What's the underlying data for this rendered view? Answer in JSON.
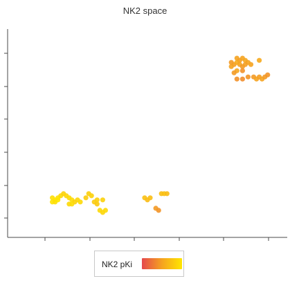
{
  "chart_data": {
    "type": "scatter",
    "title": "NK2 space",
    "legend": {
      "label": "NK2 pKi",
      "colors": [
        "#e5484d",
        "#f5a320",
        "#ffe600"
      ],
      "placement": "bottom-center"
    },
    "grid": false,
    "xlim": [
      0,
      100
    ],
    "ylim": [
      0,
      100
    ],
    "points": [
      {
        "x": 80,
        "y": 84,
        "c": 0.45
      },
      {
        "x": 82,
        "y": 86,
        "c": 0.5
      },
      {
        "x": 83,
        "y": 85,
        "c": 0.48
      },
      {
        "x": 84,
        "y": 86,
        "c": 0.5
      },
      {
        "x": 85,
        "y": 85,
        "c": 0.52
      },
      {
        "x": 86,
        "y": 84,
        "c": 0.5
      },
      {
        "x": 81,
        "y": 83,
        "c": 0.47
      },
      {
        "x": 82,
        "y": 84,
        "c": 0.55
      },
      {
        "x": 83,
        "y": 83,
        "c": 0.5
      },
      {
        "x": 84,
        "y": 82,
        "c": 0.45
      },
      {
        "x": 85,
        "y": 83,
        "c": 0.48
      },
      {
        "x": 80,
        "y": 82,
        "c": 0.5
      },
      {
        "x": 82,
        "y": 80,
        "c": 0.52
      },
      {
        "x": 81,
        "y": 79,
        "c": 0.45
      },
      {
        "x": 84,
        "y": 80,
        "c": 0.4
      },
      {
        "x": 82,
        "y": 76,
        "c": 0.4
      },
      {
        "x": 84,
        "y": 76,
        "c": 0.38
      },
      {
        "x": 86,
        "y": 77,
        "c": 0.42
      },
      {
        "x": 88,
        "y": 77,
        "c": 0.45
      },
      {
        "x": 89,
        "y": 76,
        "c": 0.5
      },
      {
        "x": 90,
        "y": 77,
        "c": 0.48
      },
      {
        "x": 91,
        "y": 76,
        "c": 0.5
      },
      {
        "x": 92,
        "y": 77,
        "c": 0.45
      },
      {
        "x": 93,
        "y": 78,
        "c": 0.42
      },
      {
        "x": 90,
        "y": 85,
        "c": 0.55
      },
      {
        "x": 87,
        "y": 83,
        "c": 0.5
      },
      {
        "x": 16,
        "y": 19,
        "c": 0.95
      },
      {
        "x": 17,
        "y": 18,
        "c": 0.98
      },
      {
        "x": 16,
        "y": 17,
        "c": 0.97
      },
      {
        "x": 17,
        "y": 17,
        "c": 0.95
      },
      {
        "x": 18,
        "y": 19,
        "c": 0.96
      },
      {
        "x": 19,
        "y": 20,
        "c": 0.9
      },
      {
        "x": 20,
        "y": 21,
        "c": 0.85
      },
      {
        "x": 21,
        "y": 20,
        "c": 0.88
      },
      {
        "x": 22,
        "y": 19,
        "c": 0.9
      },
      {
        "x": 23,
        "y": 18,
        "c": 0.92
      },
      {
        "x": 24,
        "y": 17,
        "c": 0.85
      },
      {
        "x": 22,
        "y": 16,
        "c": 0.9
      },
      {
        "x": 23,
        "y": 16,
        "c": 0.92
      },
      {
        "x": 25,
        "y": 18,
        "c": 0.88
      },
      {
        "x": 26,
        "y": 17,
        "c": 0.9
      },
      {
        "x": 28,
        "y": 19,
        "c": 0.8
      },
      {
        "x": 29,
        "y": 21,
        "c": 0.82
      },
      {
        "x": 30,
        "y": 20,
        "c": 0.85
      },
      {
        "x": 31,
        "y": 17,
        "c": 0.8
      },
      {
        "x": 32,
        "y": 16,
        "c": 0.78
      },
      {
        "x": 34,
        "y": 18,
        "c": 0.85
      },
      {
        "x": 33,
        "y": 13,
        "c": 0.9
      },
      {
        "x": 34,
        "y": 12,
        "c": 0.88
      },
      {
        "x": 35,
        "y": 13,
        "c": 0.9
      },
      {
        "x": 32,
        "y": 18,
        "c": 0.82
      },
      {
        "x": 18,
        "y": 18,
        "c": 1.0
      },
      {
        "x": 49,
        "y": 19,
        "c": 0.72
      },
      {
        "x": 50,
        "y": 18,
        "c": 0.68
      },
      {
        "x": 51,
        "y": 19,
        "c": 0.7
      },
      {
        "x": 55,
        "y": 21,
        "c": 0.7
      },
      {
        "x": 56,
        "y": 21,
        "c": 0.72
      },
      {
        "x": 57,
        "y": 21,
        "c": 0.68
      },
      {
        "x": 53,
        "y": 14,
        "c": 0.45
      },
      {
        "x": 54,
        "y": 13,
        "c": 0.42
      }
    ]
  }
}
